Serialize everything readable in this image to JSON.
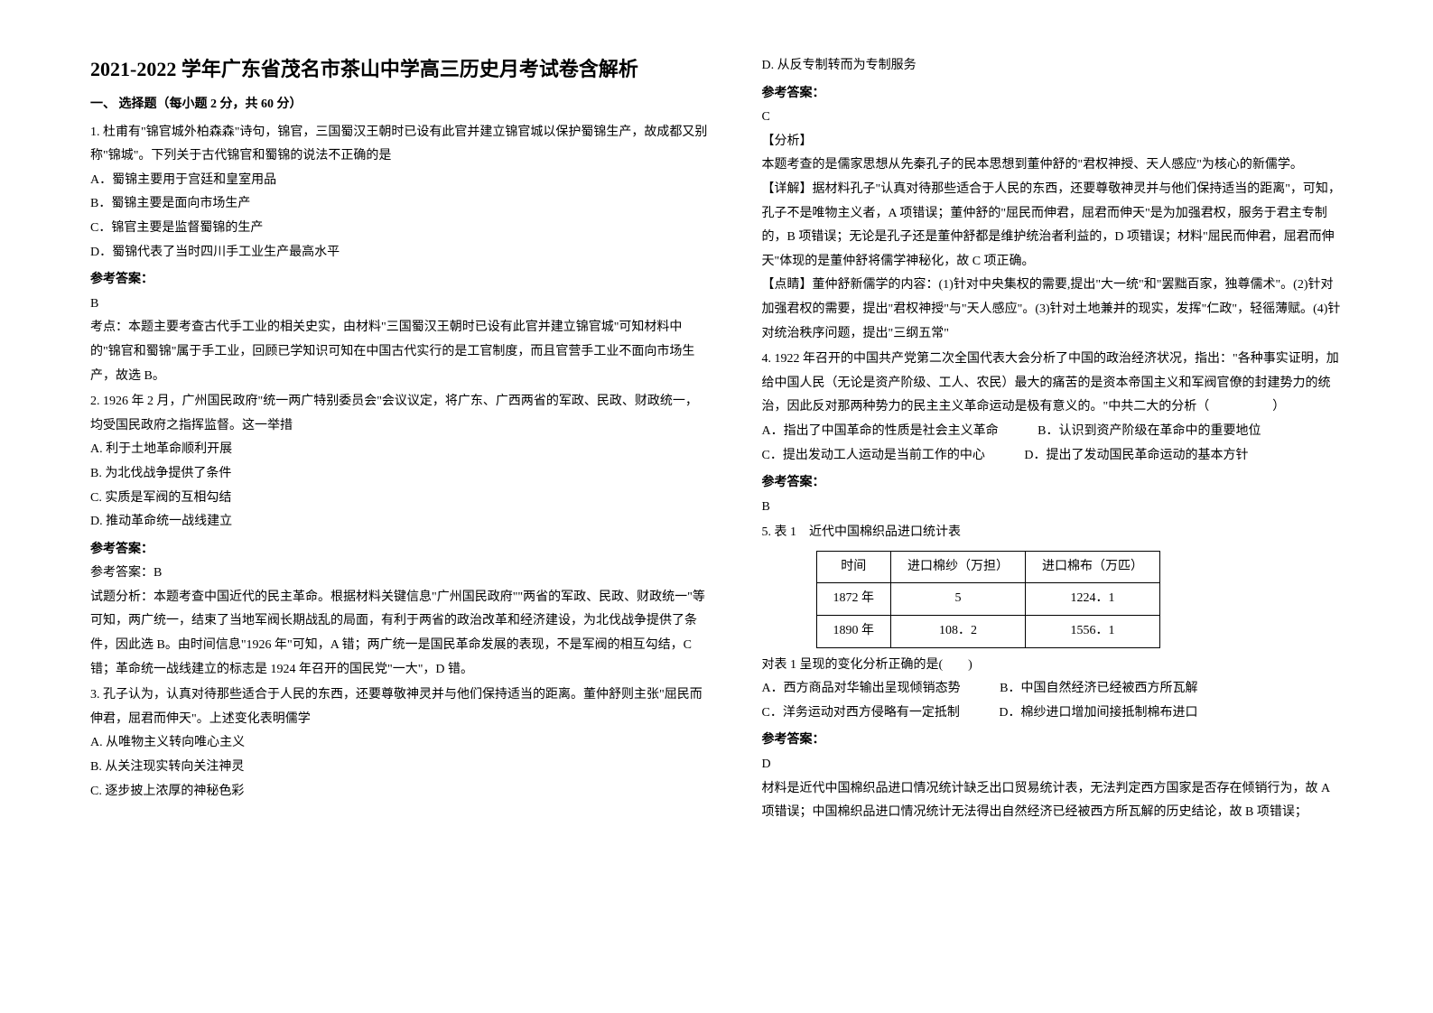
{
  "title": "2021-2022 学年广东省茂名市茶山中学高三历史月考试卷含解析",
  "section1_head": "一、 选择题（每小题 2 分，共 60 分）",
  "q1": {
    "stem": "1. 杜甫有\"锦官城外柏森森\"诗句，锦官，三国蜀汉王朝时已设有此官并建立锦官城以保护蜀锦生产，故成都又别称\"锦城\"。下列关于古代锦官和蜀锦的说法不正确的是",
    "a": "A．蜀锦主要用于宫廷和皇室用品",
    "b": "B．蜀锦主要是面向市场生产",
    "c": "C．锦官主要是监督蜀锦的生产",
    "d": "D．蜀锦代表了当时四川手工业生产最高水平",
    "ans_label": "参考答案：",
    "ans": "B",
    "explain": "考点：本题主要考查古代手工业的相关史实，由材料\"三国蜀汉王朝时已设有此官并建立锦官城\"可知材料中的\"锦官和蜀锦\"属于手工业，回顾已学知识可知在中国古代实行的是工官制度，而且官营手工业不面向市场生产，故选 B。"
  },
  "q2": {
    "stem": "2. 1926 年 2 月，广州国民政府\"统一两广特别委员会\"会议议定，将广东、广西两省的军政、民政、财政统一，均受国民政府之指挥监督。这一举措",
    "a": "A. 利于土地革命顺利开展",
    "b": "B. 为北伐战争提供了条件",
    "c": "C. 实质是军阀的互相勾结",
    "d": "D. 推动革命统一战线建立",
    "ans_label": "参考答案：",
    "ans": "参考答案：B",
    "explain": "试题分析：本题考查中国近代的民主革命。根据材料关键信息\"广州国民政府\"\"两省的军政、民政、财政统一\"等可知，两广统一，结束了当地军阀长期战乱的局面，有利于两省的政治改革和经济建设，为北伐战争提供了条件，因此选 B。由时间信息\"1926 年\"可知，A 错；两广统一是国民革命发展的表现，不是军阀的相互勾结，C 错；革命统一战线建立的标志是 1924 年召开的国民党\"一大\"，D 错。"
  },
  "q3": {
    "stem": "3. 孔子认为，认真对待那些适合于人民的东西，还要尊敬神灵并与他们保持适当的距离。董仲舒则主张\"屈民而伸君，屈君而伸天\"。上述变化表明儒学",
    "a": "A. 从唯物主义转向唯心主义",
    "b": "B. 从关注现实转向关注神灵",
    "c": "C. 逐步披上浓厚的神秘色彩",
    "d": "D. 从反专制转而为专制服务",
    "ans_label": "参考答案：",
    "ans": "C",
    "fenxi_label": "【分析】",
    "fenxi": "本题考查的是儒家思想从先秦孔子的民本思想到董仲舒的\"君权神授、天人感应\"为核心的新儒学。",
    "detail": "【详解】据材料孔子\"认真对待那些适合于人民的东西，还要尊敬神灵并与他们保持适当的距离\"，可知，孔子不是唯物主义者，A 项错误；董仲舒的\"屈民而伸君，屈君而伸天\"是为加强君权，服务于君主专制的，B 项错误；无论是孔子还是董仲舒都是维护统治者利益的，D 项错误；材料\"屈民而伸君，屈君而伸天\"体现的是董仲舒将儒学神秘化，故 C 项正确。",
    "dianjing": "【点睛】董仲舒新儒学的内容：(1)针对中央集权的需要,提出\"大一统\"和\"罢黜百家，独尊儒术\"。(2)针对加强君权的需要，提出\"君权神授\"与\"天人感应\"。(3)针对土地兼并的现实，发挥\"仁政\"，轻徭薄赋。(4)针对统治秩序问题，提出\"三纲五常\""
  },
  "q4": {
    "stem": "4. 1922 年召开的中国共产党第二次全国代表大会分析了中国的政治经济状况，指出：\"各种事实证明，加给中国人民（无论是资产阶级、工人、农民）最大的痛苦的是资本帝国主义和军阀官僚的封建势力的统治，因此反对那两种势力的民主主义革命运动是极有意义的。\"中共二大的分析（　　　　　）",
    "a": "A．指出了中国革命的性质是社会主义革命",
    "b": "B．认识到资产阶级在革命中的重要地位",
    "c": "C．提出发动工人运动是当前工作的中心",
    "d": "D．提出了发动国民革命运动的基本方针",
    "ans_label": "参考答案：",
    "ans": "B"
  },
  "q5": {
    "stem": "5. 表 1　近代中国棉织品进口统计表",
    "table": {
      "headers": [
        "时间",
        "进口棉纱（万担）",
        "进口棉布（万匹）"
      ],
      "rows": [
        [
          "1872 年",
          "5",
          "1224．1"
        ],
        [
          "1890 年",
          "108．2",
          "1556．1"
        ]
      ]
    },
    "post": "对表 1 呈现的变化分析正确的是(　　)",
    "a": "A．西方商品对华输出呈现倾销态势",
    "b": "B．中国自然经济已经被西方所瓦解",
    "c": "C．洋务运动对西方侵略有一定抵制",
    "d": "D．棉纱进口增加间接抵制棉布进口",
    "ans_label": "参考答案：",
    "ans": "D",
    "explain": "材料是近代中国棉织品进口情况统计缺乏出口贸易统计表，无法判定西方国家是否存在倾销行为，故 A 项错误；中国棉织品进口情况统计无法得出自然经济已经被西方所瓦解的历史结论，故 B 项错误；"
  }
}
